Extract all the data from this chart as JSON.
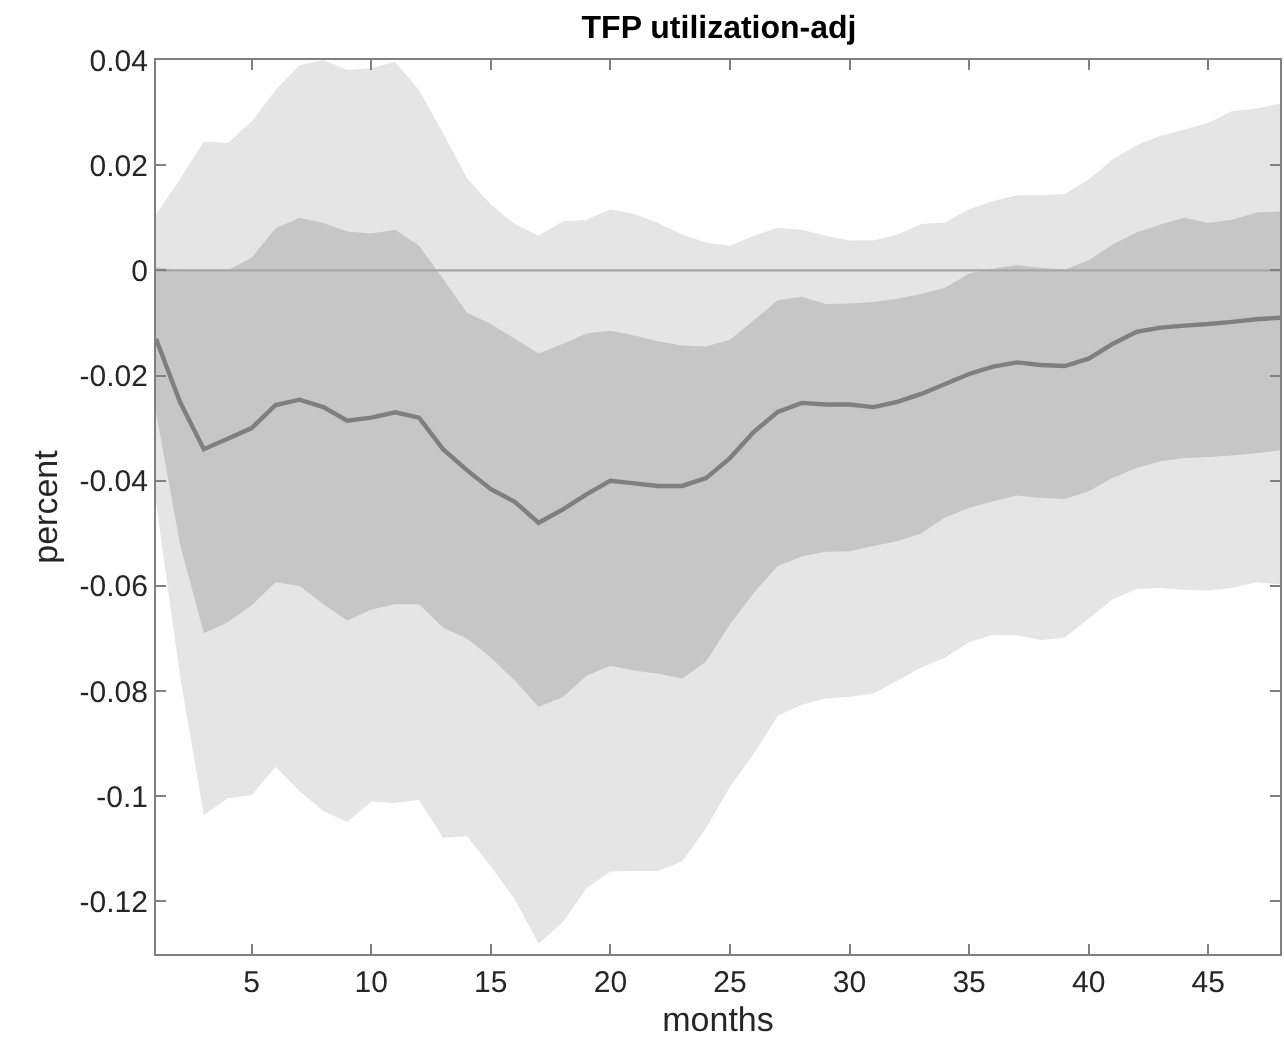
{
  "chart_data": {
    "type": "line",
    "title": "TFP utilization-adj",
    "xlabel": "months",
    "ylabel": "percent",
    "x": [
      1,
      2,
      3,
      4,
      5,
      6,
      7,
      8,
      9,
      10,
      11,
      12,
      13,
      14,
      15,
      16,
      17,
      18,
      19,
      20,
      21,
      22,
      23,
      24,
      25,
      26,
      27,
      28,
      29,
      30,
      31,
      32,
      33,
      34,
      35,
      36,
      37,
      38,
      39,
      40,
      41,
      42,
      43,
      44,
      45,
      46,
      47,
      48
    ],
    "series": [
      {
        "color": "#e5e5e5",
        "values": [
          null,
          null,
          null,
          null,
          null,
          null,
          null,
          null,
          null,
          null,
          null,
          null,
          null,
          null,
          null,
          null,
          null,
          null,
          null,
          null,
          null,
          null,
          null,
          null,
          null,
          null,
          null,
          null,
          null,
          null,
          null,
          null,
          null,
          null,
          null,
          null,
          null,
          null,
          null,
          null,
          null,
          null,
          null,
          null,
          null,
          null,
          null,
          null
        ],
        "upper": [
          0.0106,
          0.0173,
          0.0245,
          0.0242,
          0.0283,
          0.0343,
          0.039,
          0.04,
          0.0381,
          0.0385,
          0.0396,
          0.0343,
          0.0261,
          0.0175,
          0.0125,
          0.0088,
          0.0066,
          0.0093,
          0.0096,
          0.0116,
          0.0107,
          0.009,
          0.0068,
          0.0053,
          0.0047,
          0.0066,
          0.0081,
          0.0077,
          0.0066,
          0.0057,
          0.0057,
          0.0068,
          0.0088,
          0.0091,
          0.0116,
          0.0132,
          0.0143,
          0.0143,
          0.0145,
          0.0173,
          0.0211,
          0.0238,
          0.0256,
          0.0268,
          0.028,
          0.0303,
          0.0308,
          0.0317
        ],
        "lower": [
          -0.044,
          -0.077,
          -0.1036,
          -0.1004,
          -0.0998,
          -0.0944,
          -0.099,
          -0.1028,
          -0.1049,
          -0.101,
          -0.1013,
          -0.1007,
          -0.1079,
          -0.1076,
          -0.1133,
          -0.1196,
          -0.128,
          -0.124,
          -0.1175,
          -0.1143,
          -0.1142,
          -0.1142,
          -0.1124,
          -0.1061,
          -0.0982,
          -0.0919,
          -0.0847,
          -0.0826,
          -0.0814,
          -0.0811,
          -0.0805,
          -0.078,
          -0.0755,
          -0.0736,
          -0.0707,
          -0.0693,
          -0.0694,
          -0.0703,
          -0.0698,
          -0.0662,
          -0.0626,
          -0.0606,
          -0.0604,
          -0.0608,
          -0.0609,
          -0.0604,
          -0.0593,
          -0.0597
        ]
      },
      {
        "color": "#c6c6c6",
        "values": [
          null,
          null,
          null,
          null,
          null,
          null,
          null,
          null,
          null,
          null,
          null,
          null,
          null,
          null,
          null,
          null,
          null,
          null,
          null,
          null,
          null,
          null,
          null,
          null,
          null,
          null,
          null,
          null,
          null,
          null,
          null,
          null,
          null,
          null,
          null,
          null,
          null,
          null,
          null,
          null,
          null,
          null,
          null,
          null,
          null,
          null,
          null,
          null
        ],
        "upper": [
          0.0006,
          0,
          0,
          0,
          0.0024,
          0.008,
          0.01,
          0.009,
          0.0074,
          0.007,
          0.0077,
          0.0047,
          -0.0016,
          -0.008,
          -0.0102,
          -0.013,
          -0.0158,
          -0.014,
          -0.012,
          -0.0115,
          -0.0124,
          -0.0135,
          -0.0143,
          -0.0145,
          -0.0132,
          -0.0095,
          -0.0057,
          -0.005,
          -0.0064,
          -0.0063,
          -0.006,
          -0.0054,
          -0.0045,
          -0.0033,
          -0.0006,
          0.0003,
          0.001,
          0.0005,
          0.0001,
          0.0019,
          0.0049,
          0.0072,
          0.0087,
          0.01,
          0.009,
          0.0096,
          0.011,
          0.0112
        ],
        "lower": [
          -0.027,
          -0.052,
          -0.069,
          -0.0669,
          -0.0637,
          -0.0593,
          -0.06,
          -0.0635,
          -0.0666,
          -0.0645,
          -0.0635,
          -0.0635,
          -0.0679,
          -0.07,
          -0.0736,
          -0.078,
          -0.083,
          -0.0812,
          -0.0771,
          -0.0752,
          -0.0761,
          -0.0767,
          -0.0776,
          -0.0744,
          -0.0673,
          -0.0613,
          -0.0562,
          -0.0544,
          -0.0535,
          -0.0534,
          -0.0524,
          -0.0515,
          -0.05,
          -0.047,
          -0.0452,
          -0.0439,
          -0.0428,
          -0.0433,
          -0.0435,
          -0.042,
          -0.0395,
          -0.0376,
          -0.0363,
          -0.0357,
          -0.0355,
          -0.0352,
          -0.0348,
          -0.0342
        ]
      },
      {
        "color": "#7f7f7f",
        "values": [
          -0.013,
          -0.025,
          -0.034,
          -0.032,
          -0.03,
          -0.0256,
          -0.0246,
          -0.026,
          -0.0286,
          -0.028,
          -0.027,
          -0.028,
          -0.034,
          -0.038,
          -0.0416,
          -0.044,
          -0.048,
          -0.0455,
          -0.0426,
          -0.04,
          -0.0405,
          -0.041,
          -0.041,
          -0.0395,
          -0.0357,
          -0.0307,
          -0.0269,
          -0.0252,
          -0.0255,
          -0.0255,
          -0.026,
          -0.025,
          -0.0235,
          -0.0216,
          -0.0197,
          -0.0183,
          -0.0175,
          -0.018,
          -0.0182,
          -0.0168,
          -0.014,
          -0.0117,
          -0.0109,
          -0.0105,
          -0.0102,
          -0.0098,
          -0.0093,
          -0.009
        ]
      }
    ],
    "ref_lines": [
      {
        "axis": "y",
        "value": 0,
        "color": "#a6a6a6"
      }
    ],
    "xlim": [
      1,
      48
    ],
    "xticks": [
      5,
      10,
      15,
      20,
      25,
      30,
      35,
      40,
      45
    ],
    "ylim": [
      -0.13,
      0.04
    ],
    "yticks": [
      -0.12,
      -0.1,
      -0.08,
      -0.06,
      -0.04,
      -0.02,
      0,
      0.02,
      0.04
    ],
    "marker": "none",
    "line_style": "solid"
  }
}
